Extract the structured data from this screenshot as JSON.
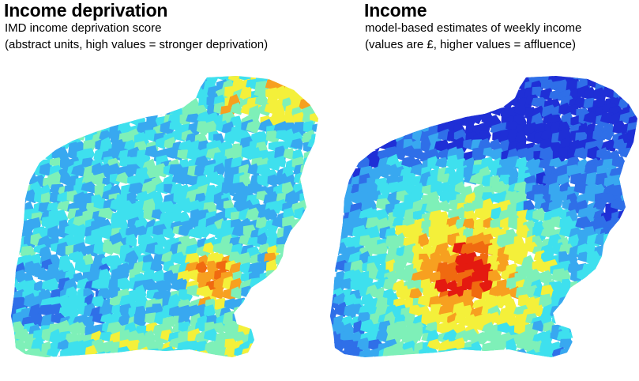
{
  "panels": [
    {
      "title": "Income deprivation",
      "subtitle_line1": "IMD income deprivation score",
      "subtitle_line2": "(abstract units, high values = stronger deprivation)"
    },
    {
      "title": "Income",
      "subtitle_line1": "model-based estimates of weekly income",
      "subtitle_line2": "(values are £, higher values = affluence)"
    }
  ],
  "colors": {
    "dark_blue": "#1f2fd6",
    "blue": "#2f6fe8",
    "light_blue": "#38a8f0",
    "cyan": "#3ee0ee",
    "aqua_green": "#7ef0b8",
    "yellow": "#f4f03a",
    "orange": "#f7a020",
    "dark_orange": "#f06a10",
    "red": "#e41a10"
  }
}
